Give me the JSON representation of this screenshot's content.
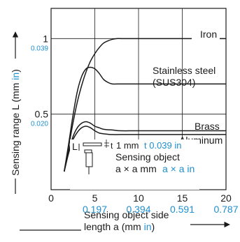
{
  "colors": {
    "ink": "#1a1a1a",
    "accent": "#1e8fd0",
    "grid": "#1a1a1a"
  },
  "chart_data": {
    "type": "line",
    "title": "",
    "xlabel": {
      "line1": "Sensing object side",
      "line2_prefix": "length a (mm ",
      "line2_unit": "in",
      "line2_suffix": ")"
    },
    "ylabel": {
      "prefix": "Sensing range L (mm ",
      "unit": "in",
      "suffix": ")"
    },
    "xlim": [
      0,
      20
    ],
    "ylim": [
      0,
      1.2
    ],
    "x_ticks": [
      {
        "value": 0,
        "label": "0",
        "inch": ""
      },
      {
        "value": 5,
        "label": "5",
        "inch": "0.197"
      },
      {
        "value": 10,
        "label": "10",
        "inch": "0.394"
      },
      {
        "value": 15,
        "label": "15",
        "inch": "0.591"
      },
      {
        "value": 20,
        "label": "20",
        "inch": "0.787"
      }
    ],
    "y_ticks": [
      {
        "value": 0.5,
        "label": "0.5",
        "inch": "0.020"
      },
      {
        "value": 1,
        "label": "1",
        "inch": "0.039"
      }
    ],
    "grid": true,
    "series": [
      {
        "name": "Iron",
        "x": [
          1.5,
          2,
          2.5,
          3,
          3.5,
          4,
          4.5,
          5,
          5.5,
          6,
          6.5,
          7,
          7.5,
          8,
          9,
          10,
          12,
          15,
          20
        ],
        "y": [
          0.12,
          0.28,
          0.44,
          0.58,
          0.69,
          0.78,
          0.85,
          0.9,
          0.94,
          0.97,
          0.985,
          0.995,
          1.0,
          1.0,
          1.0,
          1.0,
          1.0,
          1.0,
          1.0
        ]
      },
      {
        "name": "Stainless steel (SUS304)",
        "x": [
          1.5,
          2,
          2.5,
          3,
          3.5,
          4,
          4.5,
          5,
          5.5,
          6,
          6.5,
          7,
          8,
          10,
          15,
          20
        ],
        "y": [
          0.12,
          0.3,
          0.49,
          0.65,
          0.75,
          0.8,
          0.81,
          0.8,
          0.77,
          0.73,
          0.71,
          0.7,
          0.7,
          0.7,
          0.7,
          0.7
        ]
      },
      {
        "name": "Brass",
        "x": [
          1.5,
          2,
          2.5,
          3,
          3.5,
          4,
          4.5,
          5,
          5.5,
          6,
          7,
          8,
          10,
          15,
          20
        ],
        "y": [
          0.12,
          0.25,
          0.35,
          0.41,
          0.44,
          0.45,
          0.44,
          0.42,
          0.41,
          0.4,
          0.395,
          0.39,
          0.39,
          0.39,
          0.39
        ]
      },
      {
        "name": "Aluminum",
        "x": [
          1.5,
          2,
          2.5,
          3,
          3.5,
          4,
          4.5,
          5,
          5.5,
          6,
          7,
          8,
          10,
          15,
          20
        ],
        "y": [
          0.12,
          0.24,
          0.33,
          0.38,
          0.41,
          0.42,
          0.41,
          0.39,
          0.375,
          0.37,
          0.365,
          0.365,
          0.365,
          0.365,
          0.365
        ]
      }
    ],
    "labels": {
      "iron": "Iron",
      "stainless_line1": "Stainless steel",
      "stainless_line2": "(SUS304)",
      "brass": "Brass",
      "aluminum": "Aluminum"
    },
    "inset": {
      "L": "L",
      "t": "t",
      "thickness_mm": "1 mm",
      "thickness_in": "t 0.039 in",
      "object_label": "Sensing object",
      "size_mm": "a × a mm",
      "size_in": "a × a in"
    }
  }
}
